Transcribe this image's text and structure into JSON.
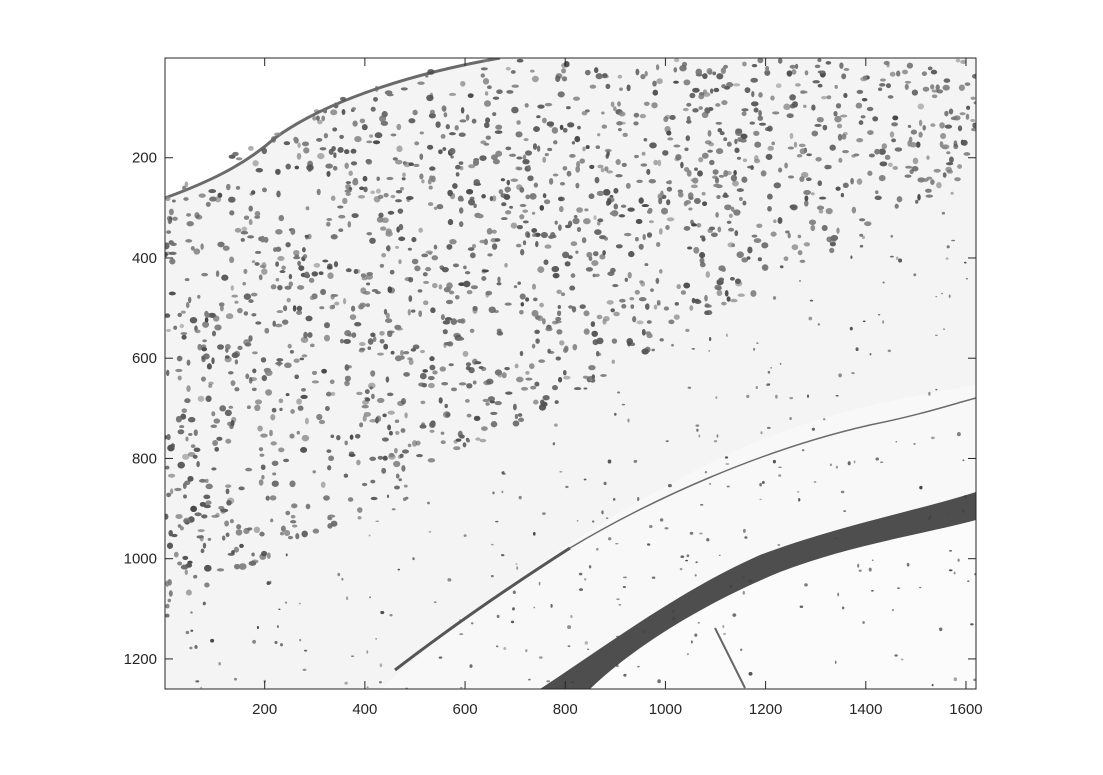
{
  "image": {
    "description_kind": "grayscale micrograph of stained brain tissue",
    "x_range": [
      1,
      1620
    ],
    "y_range": [
      1,
      1260
    ],
    "y_direction": "reversed"
  },
  "axes": {
    "x_ticks": [
      200,
      400,
      600,
      800,
      1000,
      1200,
      1400,
      1600
    ],
    "x_tick_labels": [
      "200",
      "400",
      "600",
      "800",
      "1000",
      "1200",
      "1400",
      "1600"
    ],
    "y_ticks": [
      200,
      400,
      600,
      800,
      1000,
      1200
    ],
    "y_tick_labels": [
      "200",
      "400",
      "600",
      "800",
      "1000",
      "1200"
    ],
    "frame_color": "#262626"
  },
  "colors": {
    "background": "#f3f3f3",
    "cells": "#5a5a5a",
    "band": "#3d3d3d",
    "tissue_free": "#ffffff"
  }
}
